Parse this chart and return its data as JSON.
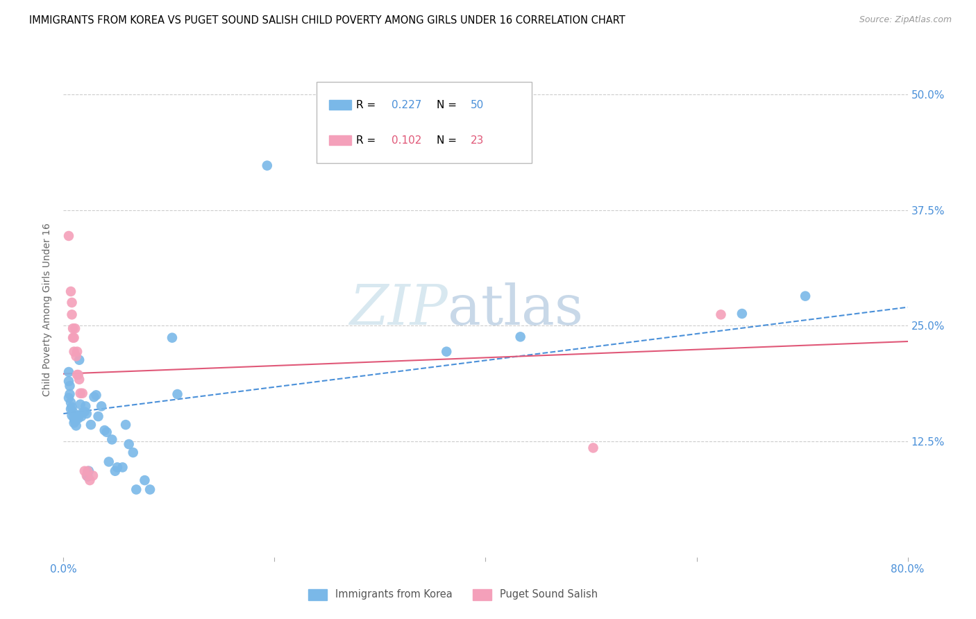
{
  "title": "IMMIGRANTS FROM KOREA VS PUGET SOUND SALISH CHILD POVERTY AMONG GIRLS UNDER 16 CORRELATION CHART",
  "source": "Source: ZipAtlas.com",
  "ylabel": "Child Poverty Among Girls Under 16",
  "ytick_labels": [
    "12.5%",
    "25.0%",
    "37.5%",
    "50.0%"
  ],
  "ytick_values": [
    0.125,
    0.25,
    0.375,
    0.5
  ],
  "xlim": [
    0.0,
    0.8
  ],
  "ylim": [
    0.0,
    0.535
  ],
  "legend_r1_label": "R = ",
  "legend_r1_val": "0.227",
  "legend_n1_label": "N = ",
  "legend_n1_val": "50",
  "legend_r2_label": "R = ",
  "legend_r2_val": "0.102",
  "legend_n2_label": "N = ",
  "legend_n2_val": "23",
  "color_blue": "#7ab8e8",
  "color_pink": "#f4a0ba",
  "color_blue_accent": "#4a90d9",
  "color_pink_accent": "#e05878",
  "color_grid": "#cccccc",
  "color_tick": "#4a90d9",
  "blue_points": [
    [
      0.005,
      0.19
    ],
    [
      0.005,
      0.172
    ],
    [
      0.005,
      0.2
    ],
    [
      0.006,
      0.185
    ],
    [
      0.006,
      0.176
    ],
    [
      0.007,
      0.167
    ],
    [
      0.007,
      0.16
    ],
    [
      0.008,
      0.153
    ],
    [
      0.008,
      0.162
    ],
    [
      0.009,
      0.157
    ],
    [
      0.01,
      0.15
    ],
    [
      0.01,
      0.145
    ],
    [
      0.011,
      0.147
    ],
    [
      0.012,
      0.142
    ],
    [
      0.013,
      0.153
    ],
    [
      0.014,
      0.15
    ],
    [
      0.015,
      0.213
    ],
    [
      0.016,
      0.165
    ],
    [
      0.017,
      0.152
    ],
    [
      0.018,
      0.156
    ],
    [
      0.02,
      0.157
    ],
    [
      0.021,
      0.163
    ],
    [
      0.022,
      0.155
    ],
    [
      0.023,
      0.087
    ],
    [
      0.024,
      0.093
    ],
    [
      0.026,
      0.143
    ],
    [
      0.029,
      0.173
    ],
    [
      0.031,
      0.175
    ],
    [
      0.033,
      0.152
    ],
    [
      0.036,
      0.163
    ],
    [
      0.039,
      0.137
    ],
    [
      0.041,
      0.135
    ],
    [
      0.043,
      0.103
    ],
    [
      0.046,
      0.127
    ],
    [
      0.049,
      0.093
    ],
    [
      0.051,
      0.097
    ],
    [
      0.056,
      0.097
    ],
    [
      0.059,
      0.143
    ],
    [
      0.062,
      0.122
    ],
    [
      0.066,
      0.113
    ],
    [
      0.069,
      0.073
    ],
    [
      0.077,
      0.083
    ],
    [
      0.082,
      0.073
    ],
    [
      0.103,
      0.237
    ],
    [
      0.108,
      0.176
    ],
    [
      0.193,
      0.423
    ],
    [
      0.363,
      0.222
    ],
    [
      0.433,
      0.238
    ],
    [
      0.643,
      0.263
    ],
    [
      0.703,
      0.282
    ]
  ],
  "pink_points": [
    [
      0.005,
      0.347
    ],
    [
      0.007,
      0.287
    ],
    [
      0.008,
      0.275
    ],
    [
      0.008,
      0.262
    ],
    [
      0.009,
      0.247
    ],
    [
      0.009,
      0.237
    ],
    [
      0.01,
      0.237
    ],
    [
      0.01,
      0.222
    ],
    [
      0.011,
      0.247
    ],
    [
      0.012,
      0.217
    ],
    [
      0.013,
      0.222
    ],
    [
      0.013,
      0.197
    ],
    [
      0.014,
      0.197
    ],
    [
      0.015,
      0.192
    ],
    [
      0.016,
      0.177
    ],
    [
      0.018,
      0.177
    ],
    [
      0.02,
      0.093
    ],
    [
      0.022,
      0.088
    ],
    [
      0.023,
      0.093
    ],
    [
      0.025,
      0.083
    ],
    [
      0.028,
      0.088
    ],
    [
      0.502,
      0.118
    ],
    [
      0.623,
      0.262
    ]
  ],
  "blue_line_x": [
    0.0,
    0.8
  ],
  "blue_line_y": [
    0.155,
    0.27
  ],
  "pink_line_x": [
    0.0,
    0.8
  ],
  "pink_line_y": [
    0.198,
    0.233
  ],
  "bottom_legend_label1": "Immigrants from Korea",
  "bottom_legend_label2": "Puget Sound Salish"
}
